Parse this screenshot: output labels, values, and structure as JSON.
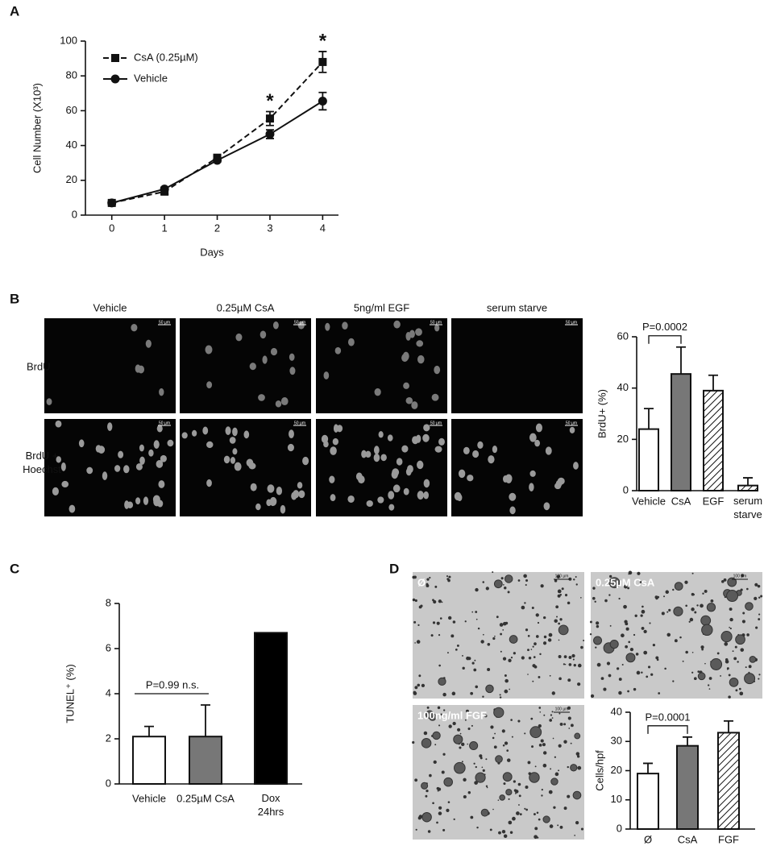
{
  "panel_labels": [
    "A",
    "B",
    "C",
    "D"
  ],
  "panel_b": {
    "columns": [
      "Vehicle",
      "0.25µM CsA",
      "5ng/ml EGF",
      "serum starve"
    ],
    "rows": [
      "BrdU",
      "BrdU + Hoechst"
    ],
    "scale_bar": "50 µm"
  },
  "panel_d": {
    "images": [
      "Ø",
      "0.25µM CsA",
      "100ng/ml FGF"
    ],
    "scale_bar": "100 µm"
  },
  "chart_data": [
    {
      "type": "line",
      "x_label": "Days",
      "y_label": "Cell Number (X10³)",
      "x": [
        0,
        1,
        2,
        3,
        4
      ],
      "xlim": [
        -0.5,
        4.3
      ],
      "xticks": [
        0,
        1,
        2,
        3,
        4
      ],
      "ylim": [
        0,
        100
      ],
      "yticks": [
        0,
        20,
        40,
        60,
        80,
        100
      ],
      "legend": "upper left",
      "series": [
        {
          "name": "CsA  (0.25µM)",
          "color": "#111111",
          "marker": "square",
          "dashed": true,
          "values": [
            7,
            13.5,
            33,
            55.5,
            88
          ],
          "errors": [
            1,
            1.5,
            1,
            4,
            6
          ]
        },
        {
          "name": "Vehicle",
          "color": "#111111",
          "marker": "circle",
          "dashed": false,
          "values": [
            7,
            15,
            31.5,
            46.5,
            65.5
          ],
          "errors": [
            0.8,
            1,
            1,
            2.5,
            5
          ]
        }
      ],
      "annotations": [
        {
          "x": 3,
          "text": "*"
        },
        {
          "x": 4,
          "text": "*"
        }
      ]
    },
    {
      "type": "bar",
      "y_label": "BrdU+ (%)",
      "categories": [
        "Vehicle",
        "CsA",
        "EGF",
        "serum starve"
      ],
      "values": [
        24,
        45.5,
        39,
        2
      ],
      "errors": [
        8,
        10.5,
        6,
        3
      ],
      "colors": [
        "#ffffff",
        "#777777",
        "#ffffff",
        "#ffffff"
      ],
      "hatched": [
        false,
        false,
        true,
        true
      ],
      "ylim": [
        0,
        60
      ],
      "yticks": [
        0,
        20,
        40,
        60
      ],
      "annotation": "P=0.0002"
    },
    {
      "type": "bar",
      "y_label": "TUNEL⁺ (%)",
      "categories": [
        "Vehicle",
        "0.25µM CsA",
        "Dox 24hrs"
      ],
      "values": [
        2.1,
        2.1,
        6.7
      ],
      "errors": [
        0.45,
        1.4,
        null
      ],
      "colors": [
        "#ffffff",
        "#777777",
        "#000000"
      ],
      "hatched": [
        false,
        false,
        false
      ],
      "ylim": [
        0,
        8
      ],
      "yticks": [
        0,
        2,
        4,
        6,
        8
      ],
      "annotation": "P=0.99 n.s."
    },
    {
      "type": "bar",
      "y_label": "Cells/hpf",
      "categories": [
        "Ø",
        "CsA",
        "FGF"
      ],
      "values": [
        19,
        28.5,
        33
      ],
      "errors": [
        3.5,
        3,
        4
      ],
      "colors": [
        "#ffffff",
        "#777777",
        "#ffffff"
      ],
      "hatched": [
        false,
        false,
        true
      ],
      "ylim": [
        0,
        40
      ],
      "yticks": [
        0,
        10,
        20,
        30,
        40
      ],
      "annotation": "P=0.0001"
    }
  ]
}
